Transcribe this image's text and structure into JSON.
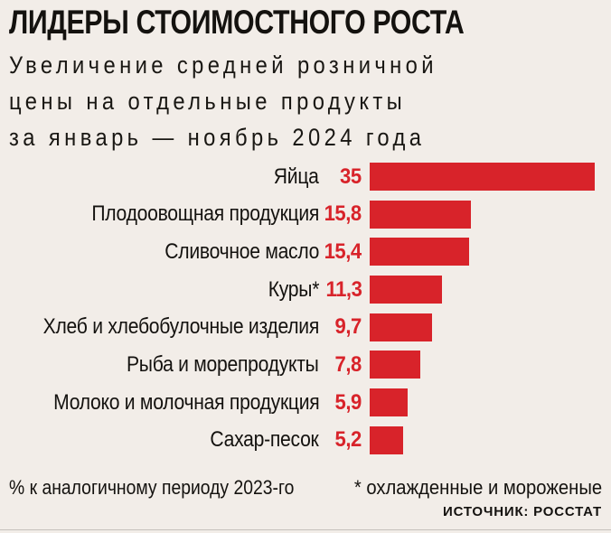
{
  "header": {
    "title": "ЛИДЕРЫ СТОИМОСТНОГО РОСТА",
    "subtitle_lines": [
      "Увеличение средней розничной",
      "цены на отдельные продукты",
      "за январь — ноябрь 2024 года"
    ]
  },
  "chart_data": {
    "type": "bar",
    "orientation": "horizontal",
    "title": "ЛИДЕРЫ СТОИМОСТНОГО РОСТА",
    "subtitle": "Увеличение средней розничной цены на отдельные продукты за январь — ноябрь 2024 года",
    "categories": [
      "Яйца",
      "Плодоовощная продукция",
      "Сливочное масло",
      "Куры*",
      "Хлеб и хлебобулочные изделия",
      "Рыба и морепродукты",
      "Молоко и молочная продукция",
      "Сахар-песок"
    ],
    "values": [
      35,
      15.8,
      15.4,
      11.3,
      9.7,
      7.8,
      5.9,
      5.2
    ],
    "value_labels": [
      "35",
      "15,8",
      "15,4",
      "11,3",
      "9,7",
      "7,8",
      "5,9",
      "5,2"
    ],
    "xlabel": "",
    "ylabel": "",
    "xlim": [
      0,
      35
    ],
    "grid": false,
    "legend": false,
    "data_labels_position": "left-of-bar",
    "unit_note": "% к аналогичному периоду 2023-го",
    "bar_color": "#d8232a"
  },
  "footer": {
    "left_note": "% к аналогичному периоду 2023-го",
    "right_note": "* охлажденные и мороженые",
    "source": "ИСТОЧНИК: РОССТАТ"
  },
  "colors": {
    "background": "#f2ede8",
    "accent_red": "#d8232a",
    "text": "#14120f",
    "divider": "#c5c1bc"
  }
}
